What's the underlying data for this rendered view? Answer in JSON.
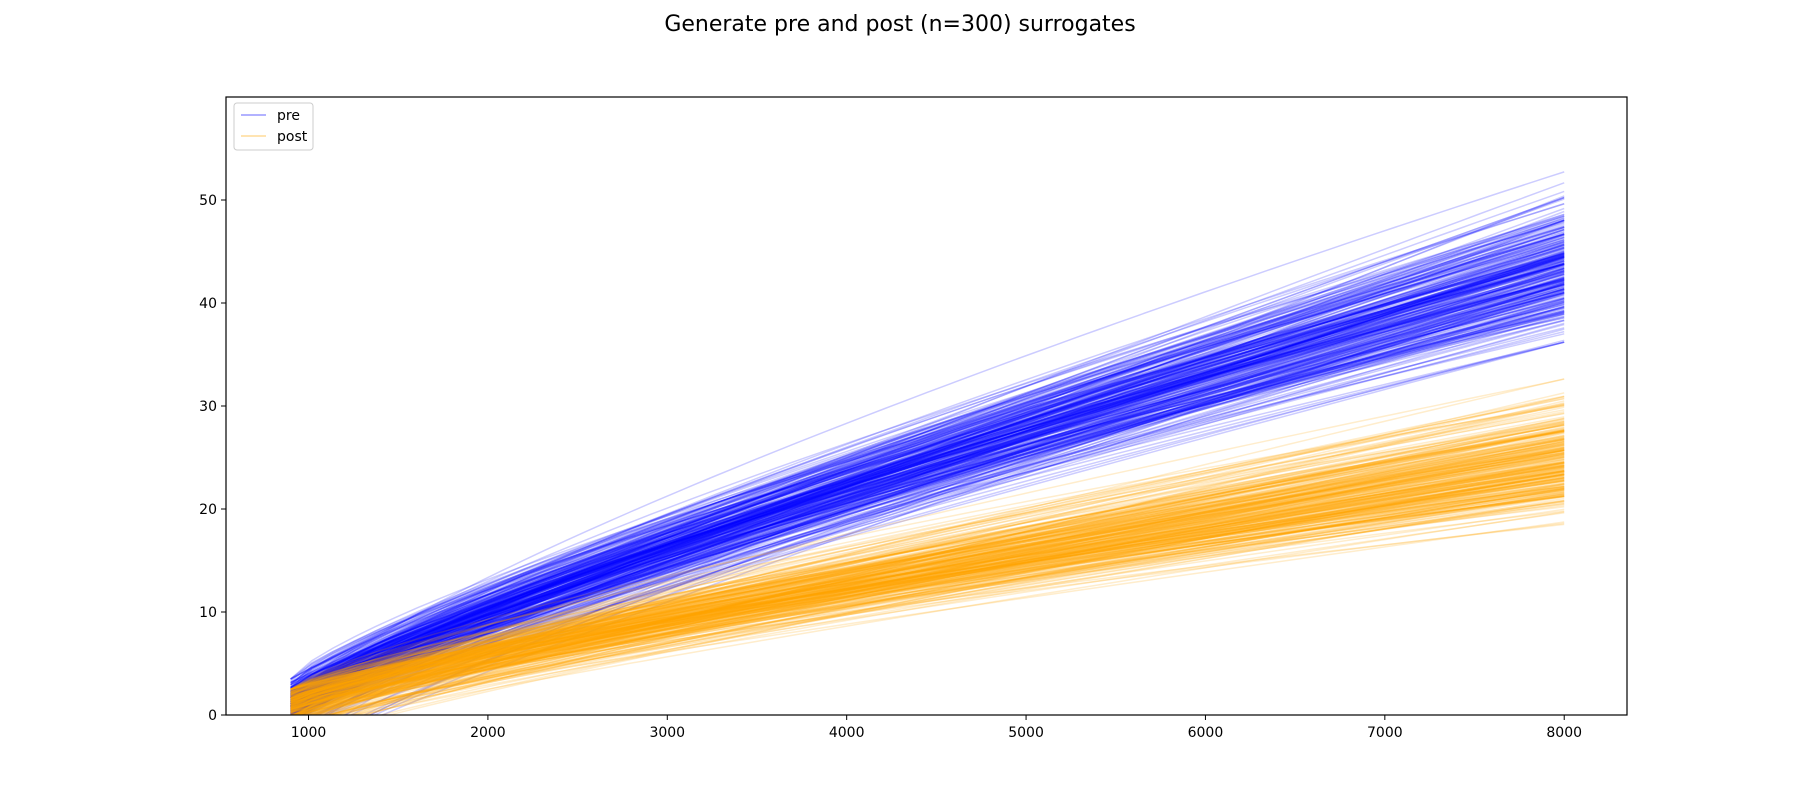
{
  "chart_data": {
    "type": "line",
    "title": "Generate pre and post (n=300) surrogates",
    "xlabel": "",
    "ylabel": "",
    "xlim": [
      540,
      8350
    ],
    "ylim": [
      0,
      60
    ],
    "x_ticks": [
      1000,
      2000,
      3000,
      4000,
      5000,
      6000,
      7000,
      8000
    ],
    "y_ticks": [
      0,
      10,
      20,
      30,
      40,
      50
    ],
    "grid": false,
    "legend_position": "top-left",
    "x_range": [
      900,
      8000
    ],
    "line_count_per_series": 300,
    "series": [
      {
        "name": "pre",
        "color": "#0000ff",
        "line_alpha": 0.2,
        "value_at_x_8000": {
          "min": 36.2,
          "median": 43.5,
          "max": 55.0
        },
        "value_at_x_900": {
          "min": -5.0,
          "median": 1.0,
          "max": 3.5
        }
      },
      {
        "name": "post",
        "color": "#ffa500",
        "line_alpha": 0.2,
        "value_at_x_8000": {
          "min": 17.0,
          "median": 25.0,
          "max": 34.5
        },
        "value_at_x_900": {
          "min": -3.0,
          "median": 1.0,
          "max": 2.5
        }
      }
    ]
  }
}
